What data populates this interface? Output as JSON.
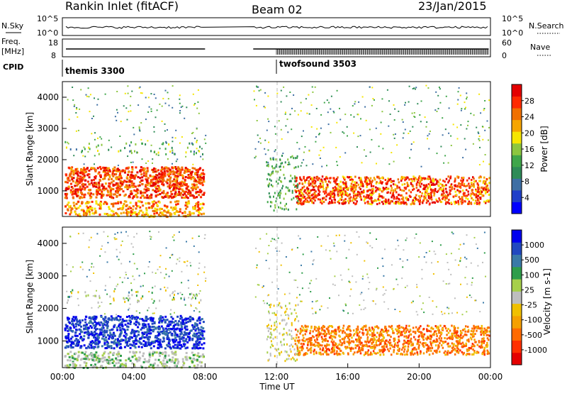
{
  "header": {
    "station": "Rankin Inlet (fitACF)",
    "beam": "Beam 02",
    "date": "23/Jan/2015"
  },
  "strips": {
    "nsky_label": "N.Sky",
    "nsky_left_ticks": [
      "10^5",
      "10^0"
    ],
    "nsearch_label": "N.Search",
    "nsearch_right_ticks": [
      "10^5",
      "10^0"
    ],
    "freq_label": "Freq.",
    "freq_unit": "[MHz]",
    "freq_ticks": [
      "18",
      "8"
    ],
    "nave_label": "Nave",
    "nave_ticks": [
      "60",
      "0"
    ],
    "cpid_label": "CPID",
    "cpid_segments": [
      {
        "name": "themis 3300",
        "start_hour": 0,
        "end_hour": 8
      },
      {
        "name": "twofsound 3503",
        "start_hour": 12,
        "end_hour": 24
      }
    ]
  },
  "chart_data": [
    {
      "type": "heatmap",
      "quantity": "power",
      "ylabel": "Slant Range [km]",
      "ylim": [
        180,
        4500
      ],
      "yticks": [
        1000,
        2000,
        3000,
        4000
      ],
      "xlim_hours": [
        0,
        24
      ],
      "colorbar": {
        "label": "Power [dB]",
        "tick_labels": [
          "28",
          "24",
          "20",
          "16",
          "12",
          "8",
          "4"
        ],
        "colors": [
          "#0000ff",
          "#1f3fc9",
          "#3e6fa4",
          "#2e8b57",
          "#3fa64a",
          "#8cc63f",
          "#f6e600",
          "#f6a500",
          "#f07000",
          "#ff2a00",
          "#e40000"
        ]
      },
      "data_gap_hours": [
        8.0,
        10.7
      ],
      "noted_features": [
        {
          "hours": [
            0,
            8
          ],
          "range_km": [
            800,
            1800
          ],
          "level": "strong echo band"
        },
        {
          "hours": [
            0,
            8
          ],
          "range_km": [
            200,
            700
          ],
          "level": "moderate echo band"
        },
        {
          "hours": [
            13,
            24
          ],
          "range_km": [
            600,
            1500
          ],
          "level": "strong echo band"
        }
      ]
    },
    {
      "type": "heatmap",
      "quantity": "velocity",
      "ylabel": "Slant Range [km]",
      "ylim": [
        180,
        4500
      ],
      "yticks": [
        1000,
        2000,
        3000,
        4000
      ],
      "xlim_hours": [
        0,
        24
      ],
      "colorbar": {
        "label": "Velocity [m s-1]",
        "tick_labels": [
          "1000",
          "500",
          "100",
          "25",
          "-25",
          "-100",
          "-500",
          "-1000"
        ],
        "colors": [
          "#e40000",
          "#ff3000",
          "#ff6a00",
          "#f5a000",
          "#f0c000",
          "#bebebe",
          "#a6cf4a",
          "#2e9d4a",
          "#3a7aa8",
          "#2148c0",
          "#0000ee"
        ]
      },
      "data_gap_hours": [
        8.0,
        10.7
      ],
      "noted_features": [
        {
          "hours": [
            0,
            8
          ],
          "range_km": [
            800,
            1800
          ],
          "level": "positive (toward radar)"
        },
        {
          "hours": [
            13,
            24
          ],
          "range_km": [
            600,
            1500
          ],
          "level": "negative (away from radar)"
        }
      ]
    }
  ],
  "x_axis": {
    "title": "Time UT",
    "ticks": [
      "00:00",
      "04:00",
      "08:00",
      "12:00",
      "16:00",
      "20:00",
      "00:00"
    ]
  }
}
